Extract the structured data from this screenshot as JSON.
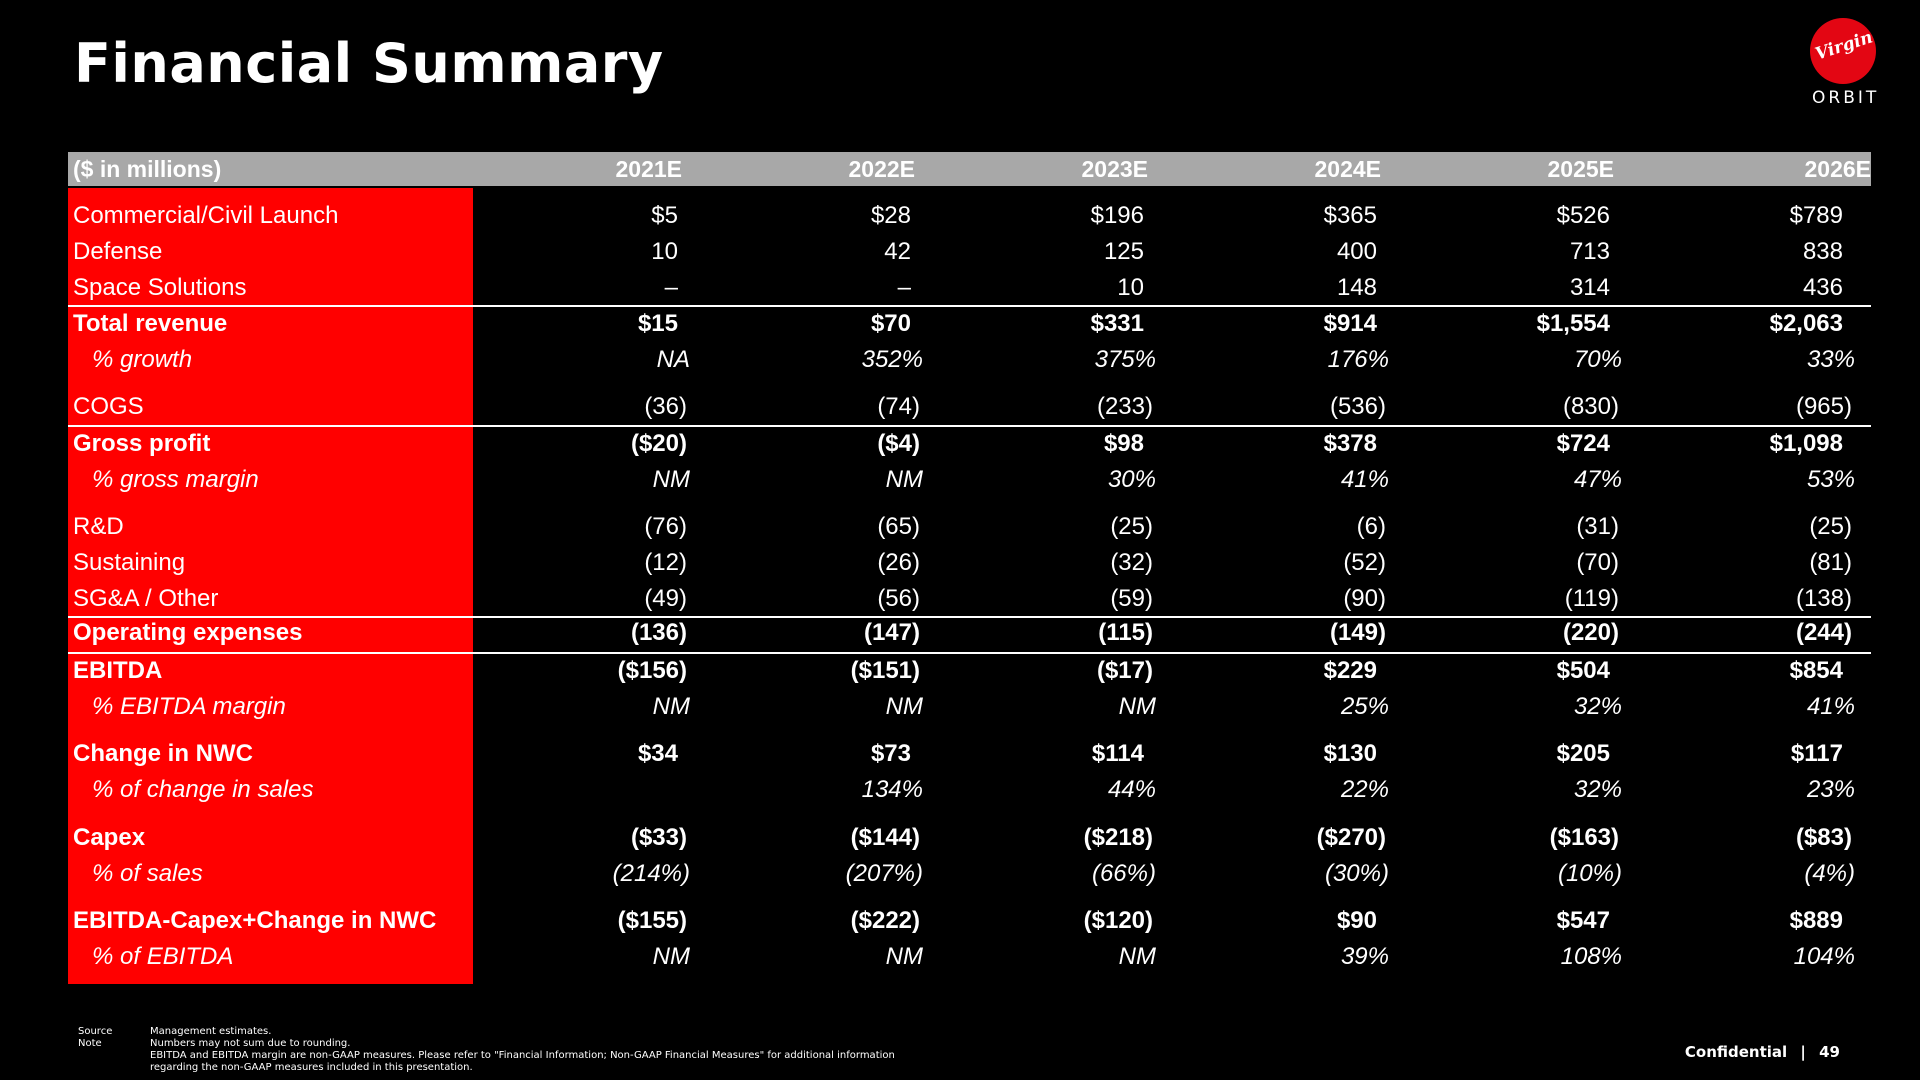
{
  "title": "Financial Summary",
  "logo": {
    "script": "Virgin",
    "word": "ORBIT",
    "color": "#e30613"
  },
  "table": {
    "units_label": "($ in millions)",
    "years": [
      "2021E",
      "2022E",
      "2023E",
      "2024E",
      "2025E",
      "2026E"
    ],
    "rows": [
      {
        "label": "Commercial/Civil Launch",
        "values": [
          "$5",
          "$28",
          "$196",
          "$365",
          "$526",
          "$789"
        ],
        "style": "normal"
      },
      {
        "label": "Defense",
        "values": [
          "10",
          "42",
          "125",
          "400",
          "713",
          "838"
        ],
        "style": "normal"
      },
      {
        "label": "Space Solutions",
        "values": [
          "–",
          "–",
          "10",
          "148",
          "314",
          "436"
        ],
        "style": "normal"
      },
      {
        "label": "Total revenue",
        "values": [
          "$15",
          "$70",
          "$331",
          "$914",
          "$1,554",
          "$2,063"
        ],
        "style": "bold"
      },
      {
        "label": "% growth",
        "values": [
          "NA",
          "352%",
          "375%",
          "176%",
          "70%",
          "33%"
        ],
        "style": "italic"
      },
      {
        "label": "COGS",
        "values": [
          "(36)",
          "(74)",
          "(233)",
          "(536)",
          "(830)",
          "(965)"
        ],
        "style": "normal"
      },
      {
        "label": "Gross profit",
        "values": [
          "($20)",
          "($4)",
          "$98",
          "$378",
          "$724",
          "$1,098"
        ],
        "style": "bold"
      },
      {
        "label": "% gross margin",
        "values": [
          "NM",
          "NM",
          "30%",
          "41%",
          "47%",
          "53%"
        ],
        "style": "italic"
      },
      {
        "label": "R&D",
        "values": [
          "(76)",
          "(65)",
          "(25)",
          "(6)",
          "(31)",
          "(25)"
        ],
        "style": "normal"
      },
      {
        "label": "Sustaining",
        "values": [
          "(12)",
          "(26)",
          "(32)",
          "(52)",
          "(70)",
          "(81)"
        ],
        "style": "normal"
      },
      {
        "label": "SG&A / Other",
        "values": [
          "(49)",
          "(56)",
          "(59)",
          "(90)",
          "(119)",
          "(138)"
        ],
        "style": "normal"
      },
      {
        "label": "Operating expenses",
        "values": [
          "(136)",
          "(147)",
          "(115)",
          "(149)",
          "(220)",
          "(244)"
        ],
        "style": "bold"
      },
      {
        "label": "EBITDA",
        "values": [
          "($156)",
          "($151)",
          "($17)",
          "$229",
          "$504",
          "$854"
        ],
        "style": "bold"
      },
      {
        "label": "% EBITDA margin",
        "values": [
          "NM",
          "NM",
          "NM",
          "25%",
          "32%",
          "41%"
        ],
        "style": "italic"
      },
      {
        "label": "Change in NWC",
        "values": [
          "$34",
          "$73",
          "$114",
          "$130",
          "$205",
          "$117"
        ],
        "style": "bold"
      },
      {
        "label": "% of change in sales",
        "values": [
          "",
          "134%",
          "44%",
          "22%",
          "32%",
          "23%"
        ],
        "style": "italic"
      },
      {
        "label": "Capex",
        "values": [
          "($33)",
          "($144)",
          "($218)",
          "($270)",
          "($163)",
          "($83)"
        ],
        "style": "bold"
      },
      {
        "label": "% of sales",
        "values": [
          "(214%)",
          "(207%)",
          "(66%)",
          "(30%)",
          "(10%)",
          "(4%)"
        ],
        "style": "italic"
      },
      {
        "label": "EBITDA-Capex+Change in NWC",
        "values": [
          "($155)",
          "($222)",
          "($120)",
          "$90",
          "$547",
          "$889"
        ],
        "style": "bold"
      },
      {
        "label": "% of EBITDA",
        "values": [
          "NM",
          "NM",
          "NM",
          "39%",
          "108%",
          "104%"
        ],
        "style": "italic"
      }
    ]
  },
  "footer": {
    "source_key": "Source",
    "note_key": "Note",
    "source_text": "Management estimates.",
    "note_lines": [
      "Numbers may not sum due to rounding.",
      "EBITDA and EBITDA margin are non-GAAP measures. Please refer to \"Financial Information; Non-GAAP Financial Measures\" for additional information",
      "regarding the non-GAAP measures included in this presentation."
    ],
    "confidential": "Confidential",
    "separator": "|",
    "page_number": "49"
  }
}
